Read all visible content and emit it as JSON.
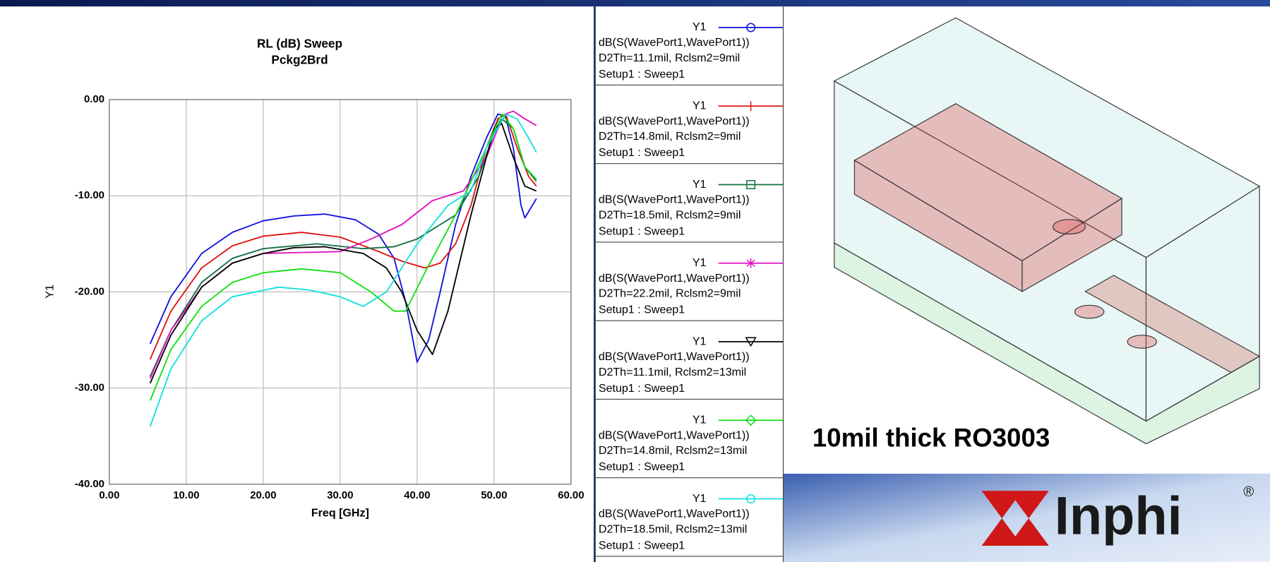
{
  "chart_data": {
    "type": "line",
    "title": "RL (dB) Sweep",
    "subtitle": "Pckg2Brd",
    "x_label": "Freq [GHz]",
    "y_label": "Y1",
    "xlim": [
      0,
      60
    ],
    "ylim": [
      -40,
      0
    ],
    "xticks": [
      {
        "value": 0,
        "label": "0.00"
      },
      {
        "value": 10,
        "label": "10.00"
      },
      {
        "value": 20,
        "label": "20.00"
      },
      {
        "value": 30,
        "label": "30.00"
      },
      {
        "value": 40,
        "label": "40.00"
      },
      {
        "value": 50,
        "label": "50.00"
      },
      {
        "value": 60,
        "label": "60.00"
      }
    ],
    "yticks": [
      {
        "value": 0,
        "label": "0.00"
      },
      {
        "value": -10,
        "label": "-10.00"
      },
      {
        "value": -20,
        "label": "-20.00"
      },
      {
        "value": -30,
        "label": "-30.00"
      },
      {
        "value": -40,
        "label": "-40.00"
      }
    ],
    "grid": true,
    "series": [
      {
        "name": "Y1",
        "expression": "dB(S(WavePort1,WavePort1))",
        "params": "D2Th=11.1mil, Rclsm2=9mil",
        "setup": "Setup1 : Sweep1",
        "color": "#1010e0",
        "marker": "circle",
        "x": [
          5.3,
          8,
          12,
          16,
          20,
          24,
          28,
          32,
          35,
          37,
          38.5,
          40,
          41.5,
          43,
          45,
          47,
          49,
          50.5,
          51.5,
          52.5,
          53.5,
          54,
          55.5
        ],
        "values": [
          -25.4,
          -20.5,
          -16,
          -13.8,
          -12.6,
          -12.1,
          -11.9,
          -12.5,
          -14,
          -16.5,
          -21,
          -27.3,
          -25,
          -20,
          -13,
          -8,
          -4,
          -1.5,
          -1.8,
          -5,
          -11,
          -12.3,
          -10.3
        ]
      },
      {
        "name": "Y1",
        "expression": "dB(S(WavePort1,WavePort1))",
        "params": "D2Th=14.8mil, Rclsm2=9mil",
        "setup": "Setup1 : Sweep1",
        "color": "#e01010",
        "marker": "plus",
        "x": [
          5.3,
          8,
          12,
          16,
          20,
          25,
          30,
          35,
          38,
          41,
          43,
          45,
          47,
          49,
          50.5,
          51.5,
          53,
          54.5,
          55.5
        ],
        "values": [
          -27,
          -22,
          -17.5,
          -15.2,
          -14.2,
          -13.8,
          -14.3,
          -15.8,
          -16.8,
          -17.5,
          -17,
          -15,
          -11,
          -5,
          -2,
          -1.5,
          -5,
          -8,
          -9
        ]
      },
      {
        "name": "Y1",
        "expression": "dB(S(WavePort1,WavePort1))",
        "params": "D2Th=18.5mil, Rclsm2=9mil",
        "setup": "Setup1 : Sweep1",
        "color": "#107040",
        "marker": "square",
        "x": [
          5.3,
          8,
          12,
          16,
          20,
          27,
          33,
          37,
          40,
          43,
          45,
          48,
          50,
          51,
          52.5,
          54,
          55.5
        ],
        "values": [
          -28.8,
          -24,
          -19,
          -16.5,
          -15.5,
          -15,
          -15.5,
          -15.3,
          -14.5,
          -13,
          -12,
          -8,
          -3.5,
          -2,
          -3,
          -7,
          -8.5
        ]
      },
      {
        "name": "Y1",
        "expression": "dB(S(WavePort1,WavePort1))",
        "params": "D2Th=22.2mil, Rclsm2=9mil",
        "setup": "Setup1 : Sweep1",
        "color": "#e010c0",
        "marker": "star",
        "x": [
          5.3,
          8,
          12,
          16,
          20,
          25,
          30,
          34,
          38,
          42,
          46,
          49,
          50.5,
          51.5,
          52.5,
          54,
          55.5
        ],
        "values": [
          -29,
          -24,
          -19.5,
          -17,
          -16,
          -15.9,
          -15.8,
          -14.5,
          -13,
          -10.5,
          -9.5,
          -6,
          -3,
          -1.5,
          -1.2,
          -2,
          -2.7
        ]
      },
      {
        "name": "Y1",
        "expression": "dB(S(WavePort1,WavePort1))",
        "params": "D2Th=11.1mil, Rclsm2=13mil",
        "setup": "Setup1 : Sweep1",
        "color": "#000000",
        "marker": "triangle",
        "x": [
          5.3,
          8,
          12,
          16,
          20,
          24,
          28,
          33,
          36,
          38,
          40,
          42,
          44,
          47,
          50,
          51,
          52.5,
          54,
          55.5
        ],
        "values": [
          -29.5,
          -24.5,
          -19.5,
          -17,
          -16,
          -15.4,
          -15.3,
          -16,
          -17.5,
          -20,
          -24,
          -26.5,
          -22,
          -12,
          -3,
          -2.5,
          -6,
          -9,
          -9.5
        ]
      },
      {
        "name": "Y1",
        "expression": "dB(S(WavePort1,WavePort1))",
        "params": "D2Th=14.8mil, Rclsm2=13mil",
        "setup": "Setup1 : Sweep1",
        "color": "#10e010",
        "marker": "diamond",
        "x": [
          5.3,
          8,
          12,
          16,
          20,
          25,
          30,
          34,
          37,
          38.5,
          41,
          45,
          49,
          51,
          52.5,
          54,
          55.5
        ],
        "values": [
          -31.3,
          -26,
          -21.5,
          -19,
          -18,
          -17.6,
          -18,
          -20,
          -22,
          -22,
          -18,
          -12,
          -5,
          -1.5,
          -3,
          -7,
          -8.3
        ]
      },
      {
        "name": "Y1",
        "expression": "dB(S(WavePort1,WavePort1))",
        "params": "D2Th=18.5mil, Rclsm2=13mil",
        "setup": "Setup1 : Sweep1",
        "color": "#10e0e0",
        "marker": "circle",
        "x": [
          5.3,
          8,
          12,
          16,
          22,
          26,
          30,
          33,
          36,
          40,
          44,
          47,
          49,
          51.5,
          53,
          54.5,
          55.5
        ],
        "values": [
          -34,
          -28,
          -23,
          -20.5,
          -19.5,
          -19.8,
          -20.5,
          -21.5,
          -20,
          -15,
          -11,
          -9.5,
          -5,
          -1.5,
          -2,
          -4,
          -5.5
        ]
      }
    ]
  },
  "caption": "10mil thick RO3003",
  "logo": {
    "text": "Inphi",
    "mark": "®"
  }
}
